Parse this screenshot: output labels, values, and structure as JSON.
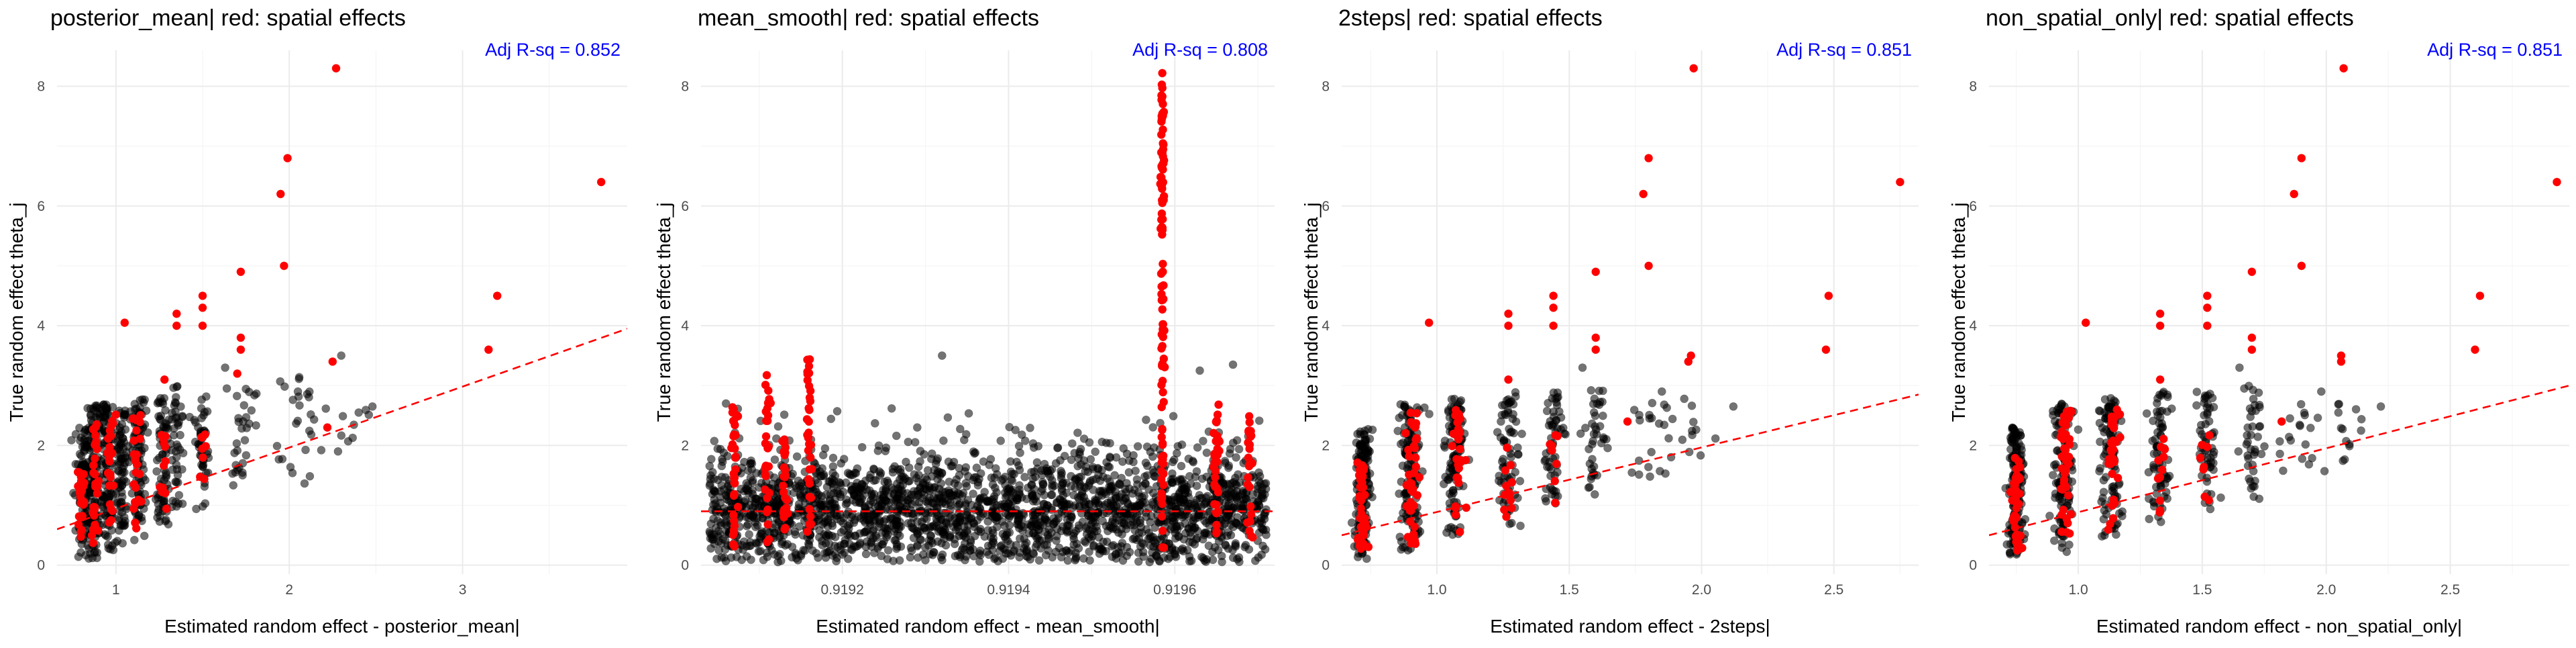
{
  "figure": {
    "panel_count": 4,
    "colors": {
      "background": "#ffffff",
      "grid_major": "#ebebeb",
      "grid_minor": "#f5f5f5",
      "point_default": "#000000",
      "point_spatial": "#ff0000",
      "fit_line": "#ff0000",
      "annotation": "#0000ff",
      "title": "#000000",
      "tick_label": "#4d4d4d"
    }
  },
  "chart_data": [
    {
      "type": "scatter",
      "title": "posterior_mean| red: spatial effects",
      "xlabel": "Estimated random effect - posterior_mean|",
      "ylabel": "True random effect theta_j",
      "annotation": "Adj R-sq = 0.852",
      "xlim": [
        0.66,
        3.95
      ],
      "ylim": [
        -0.15,
        8.6
      ],
      "xticks": [
        1,
        2,
        3
      ],
      "xtick_labels": [
        "1",
        "2",
        "3"
      ],
      "yticks": [
        0,
        2,
        4,
        6,
        8
      ],
      "ytick_labels": [
        "0",
        "2",
        "4",
        "6",
        "8"
      ],
      "grid": true,
      "legend": "none",
      "fit_line": {
        "style": "dashed",
        "points": [
          [
            0.66,
            0.6
          ],
          [
            3.95,
            3.95
          ]
        ]
      },
      "clusters": [
        {
          "x": 0.82,
          "y_min": 0.1,
          "y_max": 2.3,
          "n": 120,
          "sd": 0.022
        },
        {
          "x": 0.88,
          "y_min": 0.1,
          "y_max": 2.7,
          "n": 110,
          "sd": 0.018
        },
        {
          "x": 0.95,
          "y_min": 0.2,
          "y_max": 2.7,
          "n": 100,
          "sd": 0.02
        },
        {
          "x": 1.03,
          "y_min": 0.3,
          "y_max": 2.6,
          "n": 90,
          "sd": 0.02
        },
        {
          "x": 1.13,
          "y_min": 0.4,
          "y_max": 2.8,
          "n": 90,
          "sd": 0.022
        },
        {
          "x": 1.27,
          "y_min": 0.6,
          "y_max": 2.8,
          "n": 70,
          "sd": 0.022
        },
        {
          "x": 1.35,
          "y_min": 0.8,
          "y_max": 3.0,
          "n": 45,
          "sd": 0.02
        },
        {
          "x": 1.5,
          "y_min": 0.9,
          "y_max": 2.9,
          "n": 45,
          "sd": 0.02
        },
        {
          "x": 1.72,
          "y_min": 1.1,
          "y_max": 3.0,
          "n": 30,
          "sd": 0.03
        },
        {
          "x": 2.05,
          "y_min": 1.3,
          "y_max": 3.2,
          "n": 25,
          "sd": 0.08
        },
        {
          "x": 2.35,
          "y_min": 1.8,
          "y_max": 2.6,
          "n": 10,
          "sd": 0.08
        }
      ],
      "red_clusters": [
        {
          "x": 0.8,
          "y_min": 0.2,
          "y_max": 1.6,
          "n": 30,
          "sd": 0.01
        },
        {
          "x": 0.88,
          "y_min": 0.3,
          "y_max": 2.4,
          "n": 30,
          "sd": 0.01
        },
        {
          "x": 0.97,
          "y_min": 0.5,
          "y_max": 2.6,
          "n": 25,
          "sd": 0.012
        },
        {
          "x": 1.12,
          "y_min": 0.6,
          "y_max": 2.6,
          "n": 25,
          "sd": 0.012
        },
        {
          "x": 1.28,
          "y_min": 0.9,
          "y_max": 2.2,
          "n": 12,
          "sd": 0.01
        },
        {
          "x": 1.5,
          "y_min": 1.0,
          "y_max": 2.2,
          "n": 8,
          "sd": 0.01
        }
      ],
      "outliers": [
        [
          2.27,
          8.3
        ],
        [
          1.99,
          6.8
        ],
        [
          1.95,
          6.2
        ],
        [
          1.97,
          5.0
        ],
        [
          3.8,
          6.4
        ],
        [
          3.2,
          4.5
        ],
        [
          3.15,
          3.6
        ],
        [
          1.72,
          4.9
        ],
        [
          1.5,
          4.5
        ],
        [
          1.5,
          4.3
        ],
        [
          1.35,
          4.2
        ],
        [
          1.35,
          4.0
        ],
        [
          1.5,
          4.0
        ],
        [
          1.72,
          3.8
        ],
        [
          1.72,
          3.6
        ],
        [
          1.05,
          4.05
        ],
        [
          1.28,
          3.1
        ],
        [
          1.7,
          3.2
        ],
        [
          2.25,
          3.4
        ],
        [
          2.22,
          2.3
        ]
      ],
      "outliers_black": [
        [
          2.48,
          2.65
        ],
        [
          2.3,
          3.5
        ],
        [
          1.63,
          3.3
        ],
        [
          2.05,
          2.9
        ]
      ]
    },
    {
      "type": "scatter",
      "title": "mean_smooth| red: spatial effects",
      "xlabel": "Estimated random effect - mean_smooth|",
      "ylabel": "True random effect theta_j",
      "annotation": "Adj R-sq = 0.808",
      "xlim": [
        0.91903,
        0.91972
      ],
      "ylim": [
        -0.15,
        8.6
      ],
      "xticks": [
        0.9192,
        0.9194,
        0.9196
      ],
      "xtick_labels": [
        "0.9192",
        "0.9194",
        "0.9196"
      ],
      "yticks": [
        0,
        2,
        4,
        6,
        8
      ],
      "ytick_labels": [
        "0",
        "2",
        "4",
        "6",
        "8"
      ],
      "grid": true,
      "legend": "none",
      "fit_line": {
        "style": "dashed",
        "points": [
          [
            0.91903,
            0.9
          ],
          [
            0.91972,
            0.9
          ]
        ]
      },
      "band": {
        "x_min": 0.91904,
        "x_max": 0.91971,
        "y_mean": 0.95,
        "y_sd": 0.55,
        "n": 2300
      },
      "red_clusters": [
        {
          "x": 0.91907,
          "y_min": 0.3,
          "y_max": 2.7,
          "n": 35,
          "sd": 1.5e-06
        },
        {
          "x": 0.91911,
          "y_min": 0.3,
          "y_max": 3.2,
          "n": 30,
          "sd": 1.5e-06
        },
        {
          "x": 0.91913,
          "y_min": 0.3,
          "y_max": 2.2,
          "n": 25,
          "sd": 1.5e-06
        },
        {
          "x": 0.91916,
          "y_min": 0.3,
          "y_max": 3.5,
          "n": 35,
          "sd": 1.5e-06
        },
        {
          "x": 0.919585,
          "y_min": 0.1,
          "y_max": 8.3,
          "n": 100,
          "sd": 1e-06
        },
        {
          "x": 0.91965,
          "y_min": 0.2,
          "y_max": 2.7,
          "n": 35,
          "sd": 1.5e-06
        },
        {
          "x": 0.91969,
          "y_min": 0.3,
          "y_max": 2.5,
          "n": 25,
          "sd": 1.5e-06
        }
      ],
      "outliers": [],
      "outliers_black": [
        [
          0.91932,
          3.5
        ],
        [
          0.91963,
          3.25
        ],
        [
          0.91967,
          3.35
        ],
        [
          0.91906,
          2.7
        ]
      ]
    },
    {
      "type": "scatter",
      "title": "2steps| red: spatial effects",
      "xlabel": "Estimated random effect - 2steps|",
      "ylabel": "True random effect theta_j",
      "annotation": "Adj R-sq = 0.851",
      "xlim": [
        0.64,
        2.82
      ],
      "ylim": [
        -0.15,
        8.6
      ],
      "xticks": [
        1.0,
        1.5,
        2.0,
        2.5
      ],
      "xtick_labels": [
        "1.0",
        "1.5",
        "2.0",
        "2.5"
      ],
      "yticks": [
        0,
        2,
        4,
        6,
        8
      ],
      "ytick_labels": [
        "0",
        "2",
        "4",
        "6",
        "8"
      ],
      "grid": true,
      "legend": "none",
      "fit_line": {
        "style": "dashed",
        "points": [
          [
            0.64,
            0.5
          ],
          [
            2.82,
            2.85
          ]
        ]
      },
      "clusters": [
        {
          "x": 0.72,
          "y_min": 0.1,
          "y_max": 2.3,
          "n": 150,
          "sd": 0.015
        },
        {
          "x": 0.9,
          "y_min": 0.2,
          "y_max": 2.7,
          "n": 130,
          "sd": 0.02
        },
        {
          "x": 1.07,
          "y_min": 0.4,
          "y_max": 2.8,
          "n": 110,
          "sd": 0.02
        },
        {
          "x": 1.27,
          "y_min": 0.6,
          "y_max": 2.9,
          "n": 70,
          "sd": 0.02
        },
        {
          "x": 1.44,
          "y_min": 0.9,
          "y_max": 2.9,
          "n": 55,
          "sd": 0.018
        },
        {
          "x": 1.6,
          "y_min": 1.1,
          "y_max": 3.0,
          "n": 40,
          "sd": 0.02
        },
        {
          "x": 1.8,
          "y_min": 1.4,
          "y_max": 2.8,
          "n": 20,
          "sd": 0.05
        },
        {
          "x": 1.95,
          "y_min": 1.7,
          "y_max": 2.8,
          "n": 12,
          "sd": 0.04
        }
      ],
      "red_clusters": [
        {
          "x": 0.72,
          "y_min": 0.2,
          "y_max": 1.8,
          "n": 40,
          "sd": 0.01
        },
        {
          "x": 0.91,
          "y_min": 0.3,
          "y_max": 2.6,
          "n": 40,
          "sd": 0.012
        },
        {
          "x": 1.08,
          "y_min": 0.5,
          "y_max": 2.6,
          "n": 30,
          "sd": 0.012
        },
        {
          "x": 1.27,
          "y_min": 0.8,
          "y_max": 2.2,
          "n": 12,
          "sd": 0.01
        },
        {
          "x": 1.45,
          "y_min": 1.0,
          "y_max": 2.2,
          "n": 8,
          "sd": 0.01
        }
      ],
      "outliers": [
        [
          1.97,
          8.3
        ],
        [
          1.8,
          6.8
        ],
        [
          1.78,
          6.2
        ],
        [
          1.8,
          5.0
        ],
        [
          2.75,
          6.4
        ],
        [
          2.48,
          4.5
        ],
        [
          2.47,
          3.6
        ],
        [
          1.6,
          4.9
        ],
        [
          1.44,
          4.5
        ],
        [
          1.44,
          4.3
        ],
        [
          1.27,
          4.2
        ],
        [
          1.27,
          4.0
        ],
        [
          1.44,
          4.0
        ],
        [
          1.6,
          3.8
        ],
        [
          1.6,
          3.6
        ],
        [
          0.97,
          4.05
        ],
        [
          1.27,
          3.1
        ],
        [
          1.95,
          3.4
        ],
        [
          1.96,
          3.5
        ],
        [
          1.72,
          2.4
        ]
      ],
      "outliers_black": [
        [
          2.12,
          2.65
        ],
        [
          1.55,
          3.3
        ],
        [
          1.85,
          2.9
        ]
      ]
    },
    {
      "type": "scatter",
      "title": "non_spatial_only| red: spatial effects",
      "xlabel": "Estimated random effect - non_spatial_only|",
      "ylabel": "True random effect theta_j",
      "annotation": "Adj R-sq = 0.851",
      "xlim": [
        0.64,
        2.98
      ],
      "ylim": [
        -0.15,
        8.6
      ],
      "xticks": [
        1.0,
        1.5,
        2.0,
        2.5
      ],
      "xtick_labels": [
        "1.0",
        "1.5",
        "2.0",
        "2.5"
      ],
      "yticks": [
        0,
        2,
        4,
        6,
        8
      ],
      "ytick_labels": [
        "0",
        "2",
        "4",
        "6",
        "8"
      ],
      "grid": true,
      "legend": "none",
      "fit_line": {
        "style": "dashed",
        "points": [
          [
            0.64,
            0.5
          ],
          [
            2.98,
            3.0
          ]
        ]
      },
      "clusters": [
        {
          "x": 0.75,
          "y_min": 0.1,
          "y_max": 2.3,
          "n": 150,
          "sd": 0.016
        },
        {
          "x": 0.94,
          "y_min": 0.2,
          "y_max": 2.7,
          "n": 130,
          "sd": 0.02
        },
        {
          "x": 1.13,
          "y_min": 0.4,
          "y_max": 2.8,
          "n": 110,
          "sd": 0.02
        },
        {
          "x": 1.33,
          "y_min": 0.6,
          "y_max": 2.9,
          "n": 70,
          "sd": 0.022
        },
        {
          "x": 1.52,
          "y_min": 0.9,
          "y_max": 2.9,
          "n": 55,
          "sd": 0.02
        },
        {
          "x": 1.7,
          "y_min": 1.1,
          "y_max": 3.0,
          "n": 40,
          "sd": 0.02
        },
        {
          "x": 1.9,
          "y_min": 1.4,
          "y_max": 2.8,
          "n": 20,
          "sd": 0.05
        },
        {
          "x": 2.1,
          "y_min": 1.7,
          "y_max": 2.8,
          "n": 12,
          "sd": 0.05
        }
      ],
      "red_clusters": [
        {
          "x": 0.75,
          "y_min": 0.2,
          "y_max": 1.8,
          "n": 40,
          "sd": 0.01
        },
        {
          "x": 0.95,
          "y_min": 0.3,
          "y_max": 2.6,
          "n": 40,
          "sd": 0.012
        },
        {
          "x": 1.14,
          "y_min": 0.5,
          "y_max": 2.6,
          "n": 30,
          "sd": 0.012
        },
        {
          "x": 1.33,
          "y_min": 0.8,
          "y_max": 2.2,
          "n": 12,
          "sd": 0.01
        },
        {
          "x": 1.52,
          "y_min": 1.0,
          "y_max": 2.2,
          "n": 8,
          "sd": 0.01
        }
      ],
      "outliers": [
        [
          2.07,
          8.3
        ],
        [
          1.9,
          6.8
        ],
        [
          1.87,
          6.2
        ],
        [
          1.9,
          5.0
        ],
        [
          2.93,
          6.4
        ],
        [
          2.62,
          4.5
        ],
        [
          2.6,
          3.6
        ],
        [
          1.7,
          4.9
        ],
        [
          1.52,
          4.5
        ],
        [
          1.52,
          4.3
        ],
        [
          1.33,
          4.2
        ],
        [
          1.33,
          4.0
        ],
        [
          1.52,
          4.0
        ],
        [
          1.7,
          3.8
        ],
        [
          1.7,
          3.6
        ],
        [
          1.03,
          4.05
        ],
        [
          1.33,
          3.1
        ],
        [
          2.06,
          3.4
        ],
        [
          2.06,
          3.5
        ],
        [
          1.82,
          2.4
        ]
      ],
      "outliers_black": [
        [
          2.22,
          2.65
        ],
        [
          1.65,
          3.3
        ],
        [
          1.98,
          2.9
        ]
      ]
    }
  ]
}
